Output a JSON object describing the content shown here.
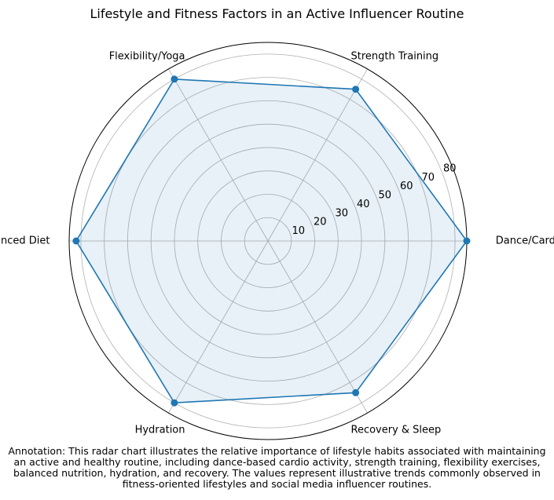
{
  "chart_data": {
    "type": "radar",
    "title": "Lifestyle and Fitness Factors in an Active Influencer Routine",
    "categories": [
      "Dance/Cardio Activity",
      "Strength Training",
      "Flexibility/Yoga",
      "Balanced Diet",
      "Hydration",
      "Recovery & Sleep"
    ],
    "values": [
      85,
      75,
      80,
      82,
      80,
      75
    ],
    "rmax": 85,
    "rticks": [
      10,
      20,
      30,
      40,
      50,
      60,
      70,
      80
    ],
    "grid": true,
    "line_color": "#1f77b4",
    "fill_color": "#1f77b4"
  },
  "annotation": "Annotation: This radar chart illustrates the relative importance of lifestyle habits associated with maintaining an active and healthy routine, including dance-based cardio activity, strength training, flexibility exercises, balanced nutrition, hydration, and recovery. The values represent illustrative trends commonly observed in fitness-oriented lifestyles and social media influencer routines."
}
